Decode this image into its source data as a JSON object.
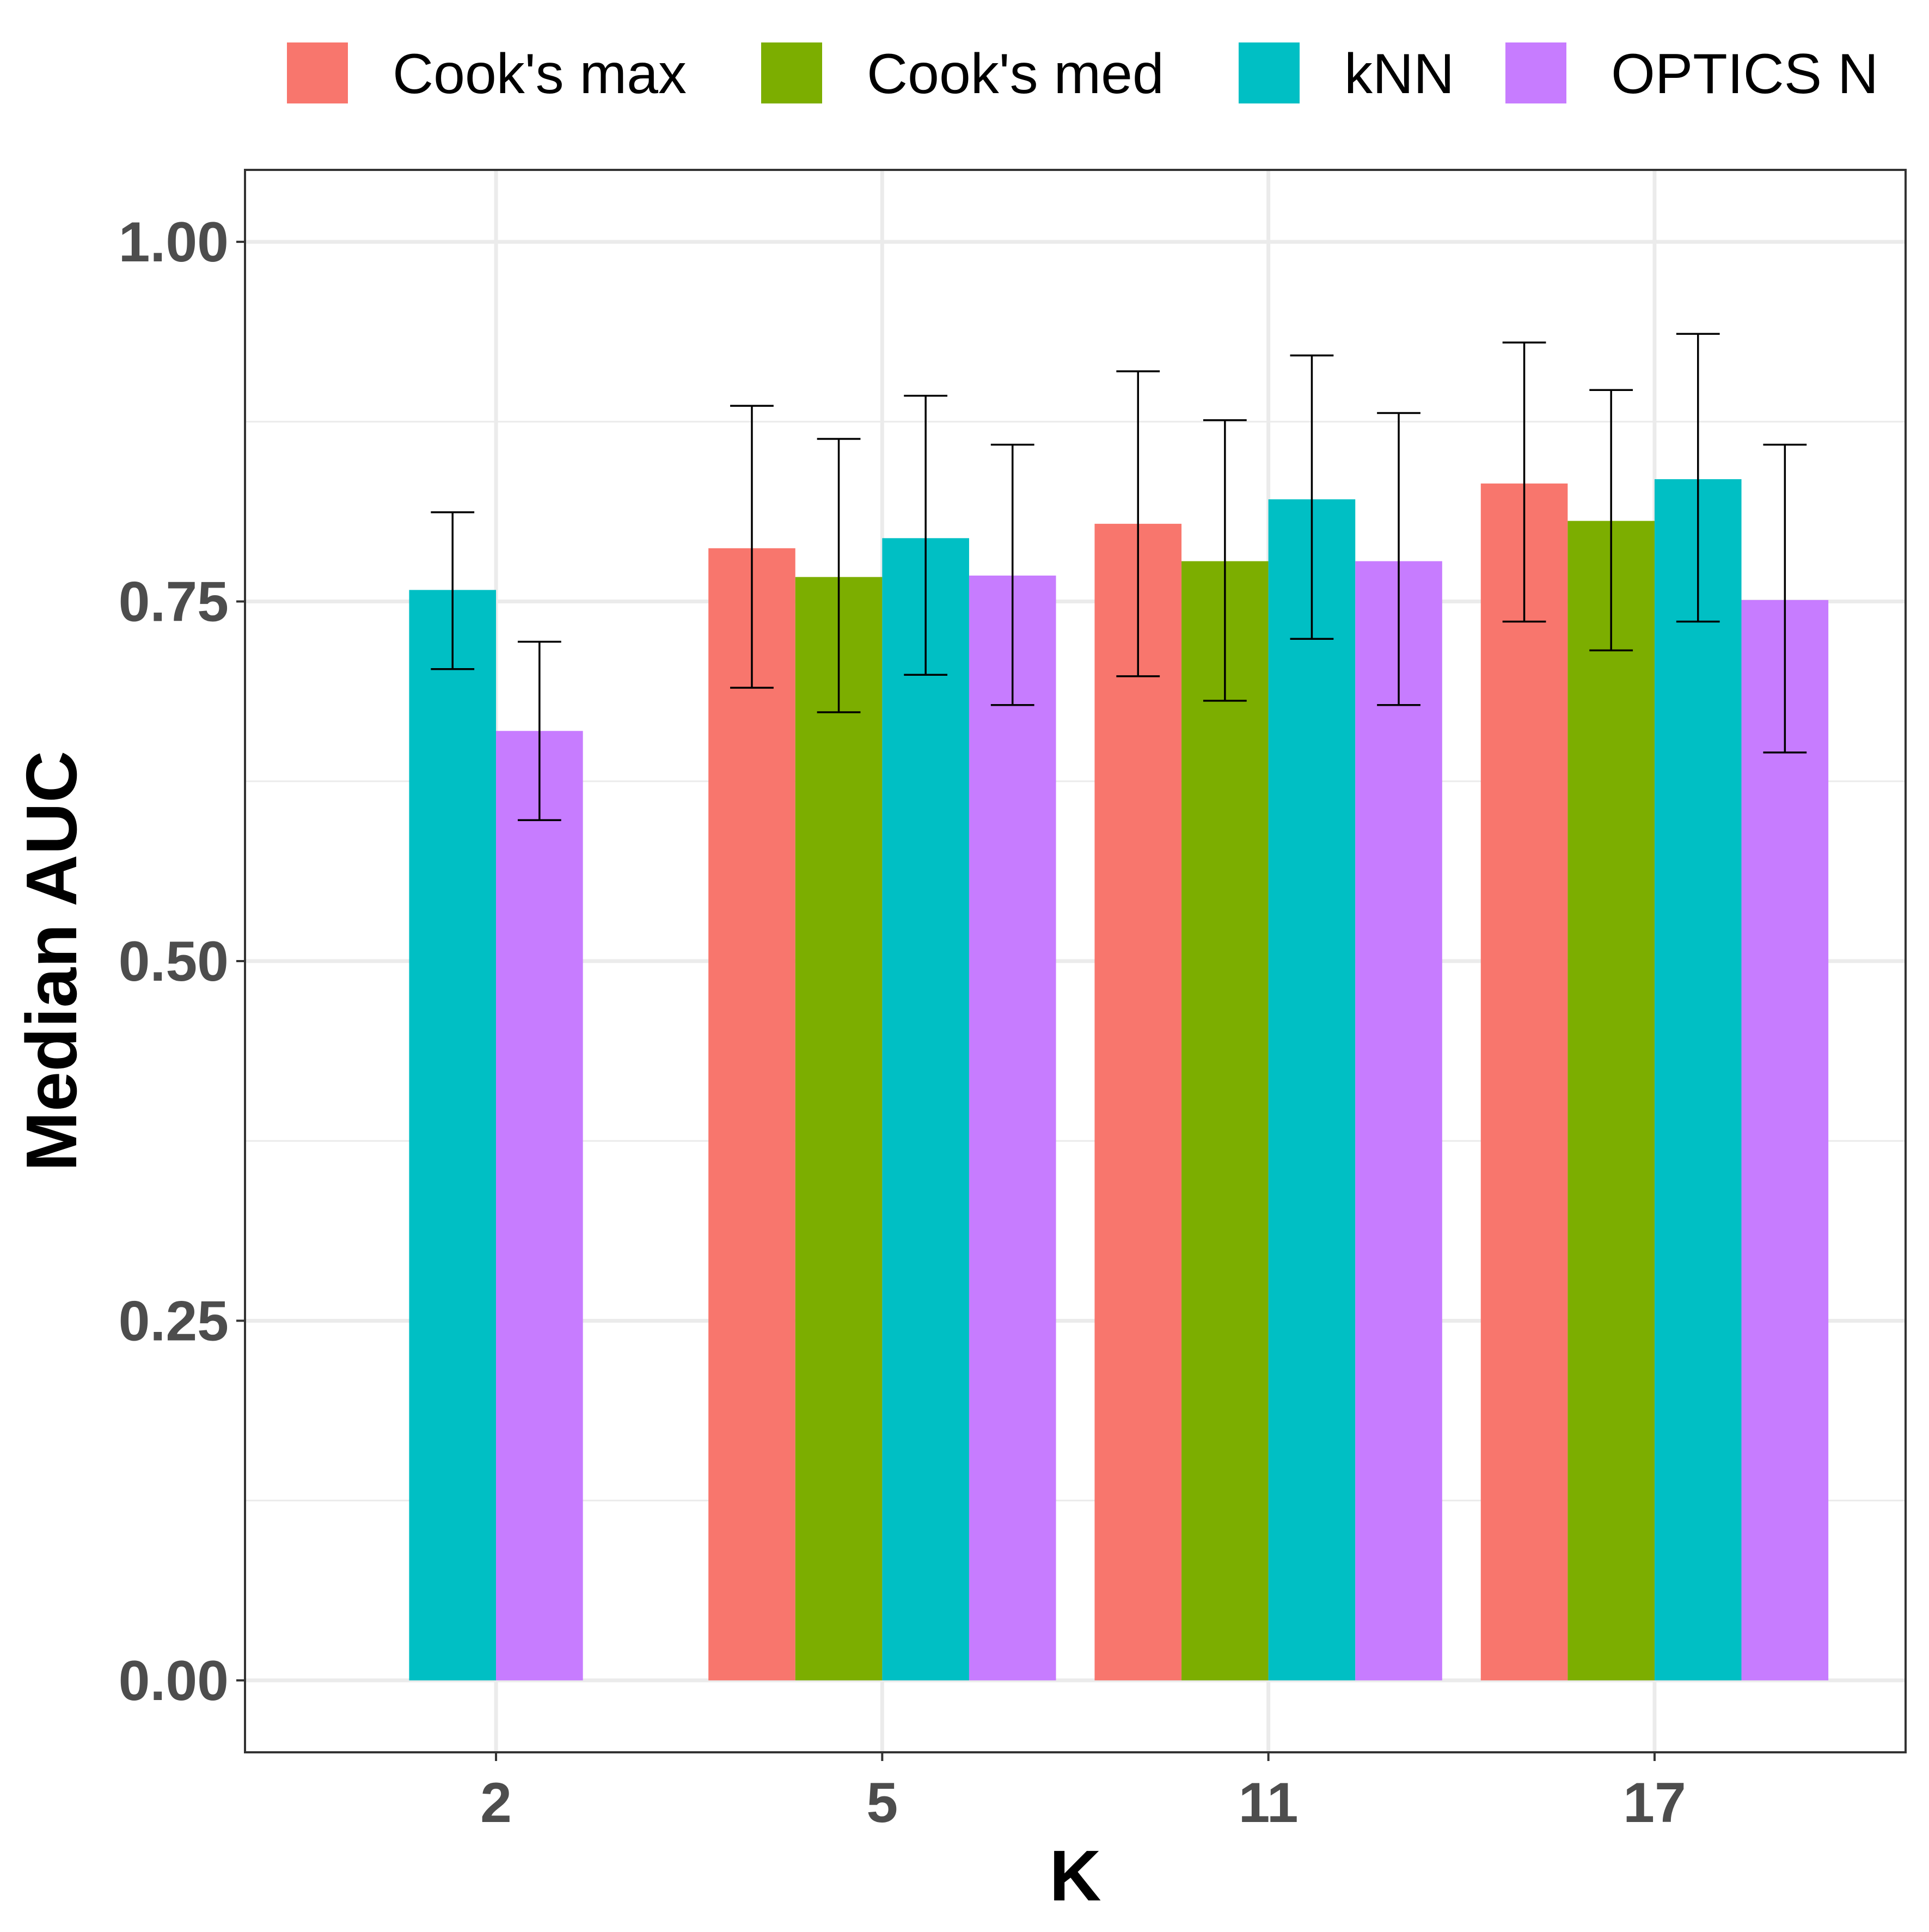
{
  "chart_data": {
    "type": "bar",
    "xlabel": "K",
    "ylabel": "Median AUC",
    "categories": [
      "2",
      "5",
      "11",
      "17"
    ],
    "ylim": [
      -0.05,
      1.05
    ],
    "yticks": [
      0.0,
      0.25,
      0.5,
      0.75,
      1.0
    ],
    "ytick_labels": [
      "0.00",
      "0.25",
      "0.50",
      "0.75",
      "1.00"
    ],
    "grid": true,
    "legend_position": "top",
    "series": [
      {
        "name": "Cook's max",
        "color": "#F8766D",
        "values": [
          null,
          0.787,
          0.804,
          0.832
        ],
        "err_low": [
          null,
          0.69,
          0.698,
          0.736
        ],
        "err_high": [
          null,
          0.886,
          0.91,
          0.93
        ]
      },
      {
        "name": "Cook's med",
        "color": "#7CAE00",
        "values": [
          null,
          0.767,
          0.778,
          0.806
        ],
        "err_low": [
          null,
          0.673,
          0.681,
          0.716
        ],
        "err_high": [
          null,
          0.863,
          0.876,
          0.897
        ]
      },
      {
        "name": "kNN",
        "color": "#00BFC4",
        "values": [
          0.758,
          0.794,
          0.821,
          0.835
        ],
        "err_low": [
          0.703,
          0.699,
          0.724,
          0.736
        ],
        "err_high": [
          0.812,
          0.893,
          0.921,
          0.936
        ]
      },
      {
        "name": "OPTICS N",
        "color": "#C77CFF",
        "values": [
          0.66,
          0.768,
          0.778,
          0.751
        ],
        "err_low": [
          0.598,
          0.678,
          0.678,
          0.645
        ],
        "err_high": [
          0.722,
          0.859,
          0.881,
          0.859
        ]
      }
    ]
  }
}
